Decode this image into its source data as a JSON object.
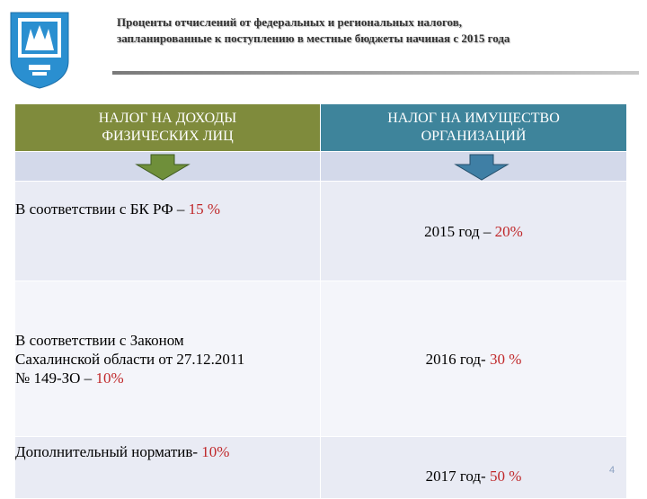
{
  "header": {
    "title_line1": "Проценты отчислений от федеральных и региональных налогов,",
    "title_line2": "запланированные к поступлению в местные бюджеты начиная  с 2015 года"
  },
  "emblem": {
    "icon": "coat-of-arms-icon",
    "colors": [
      "#2a8fd0",
      "#ffffff"
    ]
  },
  "table": {
    "headers": [
      {
        "line1": "НАЛОГ НА ДОХОДЫ",
        "line2": "ФИЗИЧЕСКИХ ЛИЦ",
        "color": "#7f8b3c"
      },
      {
        "line1": "НАЛОГ НА ИМУЩЕСТВО",
        "line2": "ОРГАНИЗАЦИЙ",
        "color": "#3e849b"
      }
    ],
    "arrows": [
      {
        "icon": "arrow-down-icon",
        "color": "#6f8f3a"
      },
      {
        "icon": "arrow-down-icon",
        "color": "#3f7fa5"
      }
    ],
    "rows": [
      {
        "left": {
          "text": "В соответствии с БК РФ – ",
          "value": "15 %"
        },
        "right": {
          "text": "2015 год – ",
          "value": "20%"
        }
      },
      {
        "left": {
          "line1": "В соответствии с Законом",
          "line2": "Сахалинской области от 27.12.2011",
          "line3_text": "№ 149-ЗО – ",
          "value": "10%"
        },
        "right": {
          "text": "2016 год- ",
          "value": "30 %"
        }
      },
      {
        "left": {
          "text": "Дополнительный норматив- ",
          "value": "10%"
        },
        "right": {
          "text": "2017 год- ",
          "value": "50 %"
        }
      }
    ]
  },
  "page_number": "4"
}
